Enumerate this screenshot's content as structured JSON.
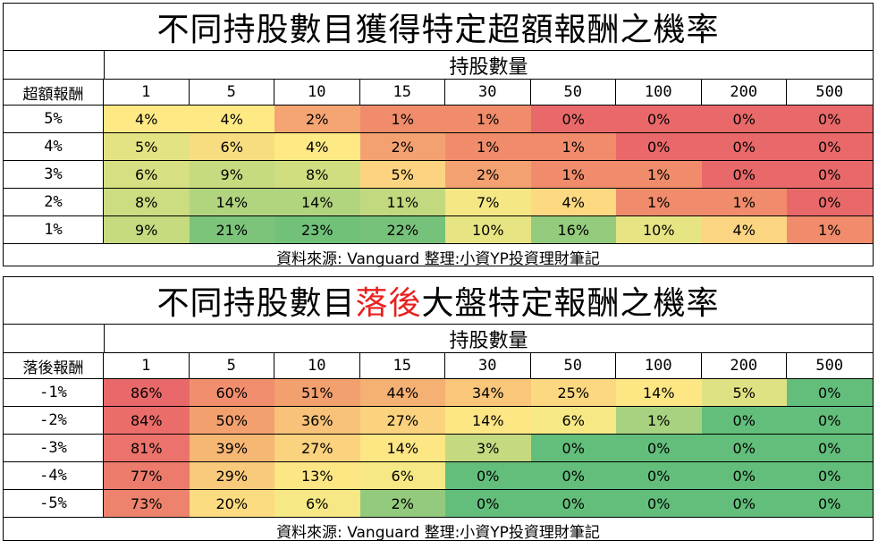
{
  "tables": [
    {
      "title_parts": [
        "不同持股數目獲得特定超額報酬之機率",
        "",
        ""
      ],
      "group_header": "持股數量",
      "row_header_label": "超額報酬",
      "columns": [
        "1",
        "5",
        "10",
        "15",
        "30",
        "50",
        "100",
        "200",
        "500"
      ],
      "rows": [
        {
          "label": "5%",
          "values": [
            "4%",
            "4%",
            "2%",
            "1%",
            "1%",
            "0%",
            "0%",
            "0%",
            "0%"
          ]
        },
        {
          "label": "4%",
          "values": [
            "5%",
            "6%",
            "4%",
            "2%",
            "1%",
            "1%",
            "0%",
            "0%",
            "0%"
          ]
        },
        {
          "label": "3%",
          "values": [
            "6%",
            "9%",
            "8%",
            "5%",
            "2%",
            "1%",
            "1%",
            "0%",
            "0%"
          ]
        },
        {
          "label": "2%",
          "values": [
            "8%",
            "14%",
            "14%",
            "11%",
            "7%",
            "4%",
            "1%",
            "1%",
            "0%"
          ]
        },
        {
          "label": "1%",
          "values": [
            "9%",
            "21%",
            "23%",
            "22%",
            "10%",
            "16%",
            "10%",
            "4%",
            "1%"
          ]
        }
      ],
      "colors": [
        [
          "#fee984",
          "#fee984",
          "#f5a572",
          "#f08c6b",
          "#f08c6b",
          "#e9696a",
          "#e9696a",
          "#e9696a",
          "#e9696a"
        ],
        [
          "#e4e383",
          "#f7dd80",
          "#fee984",
          "#f4a171",
          "#f08c6b",
          "#f08c6b",
          "#e9696a",
          "#e9696a",
          "#e9696a"
        ],
        [
          "#d6df81",
          "#c6da7f",
          "#d1de80",
          "#fcd481",
          "#f4a171",
          "#f08c6b",
          "#f08c6b",
          "#e9696a",
          "#e9696a"
        ],
        [
          "#cbdc81",
          "#b1d47f",
          "#b1d47f",
          "#c3d97f",
          "#f5e884",
          "#fdd982",
          "#f08c6b",
          "#f08c6b",
          "#e9696a"
        ],
        [
          "#c6da7f",
          "#7cc47a",
          "#71c179",
          "#77c27a",
          "#e7e483",
          "#95cb7c",
          "#e7e483",
          "#fcd582",
          "#f08c6b"
        ]
      ],
      "footer": "資料來源: Vanguard    整理:小資YP投資理財筆記"
    },
    {
      "title_parts": [
        "不同持股數目",
        "落後",
        "大盤特定報酬之機率"
      ],
      "group_header": "持股數量",
      "row_header_label": "落後報酬",
      "columns": [
        "1",
        "5",
        "10",
        "15",
        "30",
        "50",
        "100",
        "200",
        "500"
      ],
      "rows": [
        {
          "label": "-1%",
          "values": [
            "86%",
            "60%",
            "51%",
            "44%",
            "34%",
            "25%",
            "14%",
            "5%",
            "0%"
          ]
        },
        {
          "label": "-2%",
          "values": [
            "84%",
            "50%",
            "36%",
            "27%",
            "14%",
            "6%",
            "1%",
            "0%",
            "0%"
          ]
        },
        {
          "label": "-3%",
          "values": [
            "81%",
            "39%",
            "27%",
            "14%",
            "3%",
            "0%",
            "0%",
            "0%",
            "0%"
          ]
        },
        {
          "label": "-4%",
          "values": [
            "77%",
            "29%",
            "13%",
            "6%",
            "0%",
            "0%",
            "0%",
            "0%",
            "0%"
          ]
        },
        {
          "label": "-5%",
          "values": [
            "73%",
            "20%",
            "6%",
            "2%",
            "0%",
            "0%",
            "0%",
            "0%",
            "0%"
          ]
        }
      ],
      "colors": [
        [
          "#e9696a",
          "#f18e6e",
          "#f3a06f",
          "#f5b073",
          "#f9c67a",
          "#fcd980",
          "#fde684",
          "#dfe283",
          "#63be7b"
        ],
        [
          "#ea6d6a",
          "#f3a06f",
          "#f8c279",
          "#fbd27e",
          "#fde684",
          "#f6e884",
          "#a8d27f",
          "#63be7b",
          "#63be7b"
        ],
        [
          "#eb736b",
          "#f6b674",
          "#fbd27e",
          "#fde684",
          "#c4d980",
          "#63be7b",
          "#63be7b",
          "#63be7b",
          "#63be7b"
        ],
        [
          "#ec7b6c",
          "#f9ca7b",
          "#fde684",
          "#f6e884",
          "#63be7b",
          "#63be7b",
          "#63be7b",
          "#63be7b",
          "#63be7b"
        ],
        [
          "#ee836d",
          "#fcdb81",
          "#f6e884",
          "#93ca7d",
          "#63be7b",
          "#63be7b",
          "#63be7b",
          "#63be7b",
          "#63be7b"
        ]
      ],
      "footer": "資料來源: Vanguard    整理:小資YP投資理財筆記"
    }
  ]
}
